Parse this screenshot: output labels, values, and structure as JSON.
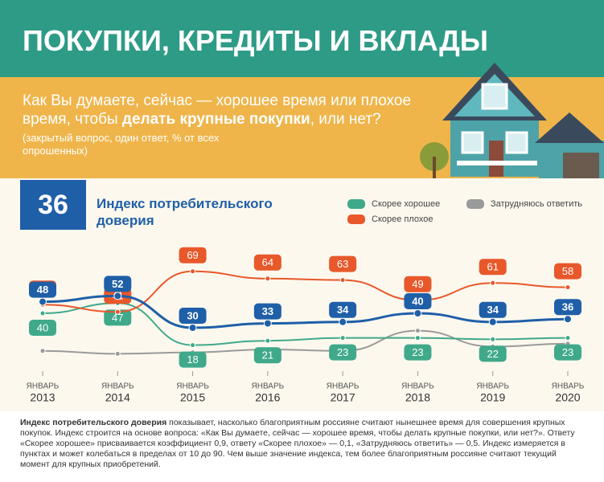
{
  "header": {
    "title": "ПОКУПКИ, КРЕДИТЫ И ВКЛАДЫ"
  },
  "question": {
    "before": "Как Вы думаете, сейчас — хорошее время или плохое время, чтобы ",
    "bold": "делать крупные покупки",
    "after": ", или нет?"
  },
  "note": "(закрытый вопрос, один ответ, % от всех опрошенных)",
  "footer": {
    "bold": "Индекс потребительского доверия",
    "text": " показывает, насколько благоприятным россияне считают нынешнее время для совершения крупных покупок. Индекс строится на основе вопроса: «Как Вы думаете, сейчас — хорошее время, чтобы делать крупные покупки, или нет?». Ответу «Скорее хорошее» присваивается коэффициент 0,9, ответу «Скорее плохое» — 0,1, «Затрудняюсь ответить» — 0,5. Индекс измеряется в пунктах и может колебаться в пределах от 10 до 90. Чем выше значение индекса, тем более благоприятным россияне считают текущий момент для крупных приобретений."
  },
  "chart_data": {
    "type": "line",
    "categories": [
      "2013",
      "2014",
      "2015",
      "2016",
      "2017",
      "2018",
      "2019",
      "2020"
    ],
    "category_months": [
      "ЯНВАРЬ",
      "ЯНВАРЬ",
      "ЯНВАРЬ",
      "ЯНВАРЬ",
      "ЯНВАРЬ",
      "ЯНВАРЬ",
      "ЯНВАРЬ",
      "ЯНВАРЬ"
    ],
    "ylim": [
      10,
      75
    ],
    "series": [
      {
        "name": "Индекс потребительского доверия",
        "color": "#1f5fa8",
        "values": [
          48,
          52,
          30,
          33,
          34,
          40,
          34,
          36
        ],
        "labels": "above"
      },
      {
        "name": "Скорее хорошее",
        "color": "#3fa98a",
        "values": [
          40,
          47,
          18,
          21,
          23,
          23,
          22,
          23
        ],
        "labels": "below"
      },
      {
        "name": "Скорее плохое",
        "color": "#e8582a",
        "values": [
          46,
          41,
          69,
          64,
          63,
          49,
          61,
          58
        ],
        "labels": "above"
      },
      {
        "name": "Затрудняюсь ответить",
        "color": "#9a9a9a",
        "values": [
          14,
          12,
          13,
          15,
          14,
          28,
          17,
          19
        ]
      }
    ]
  }
}
